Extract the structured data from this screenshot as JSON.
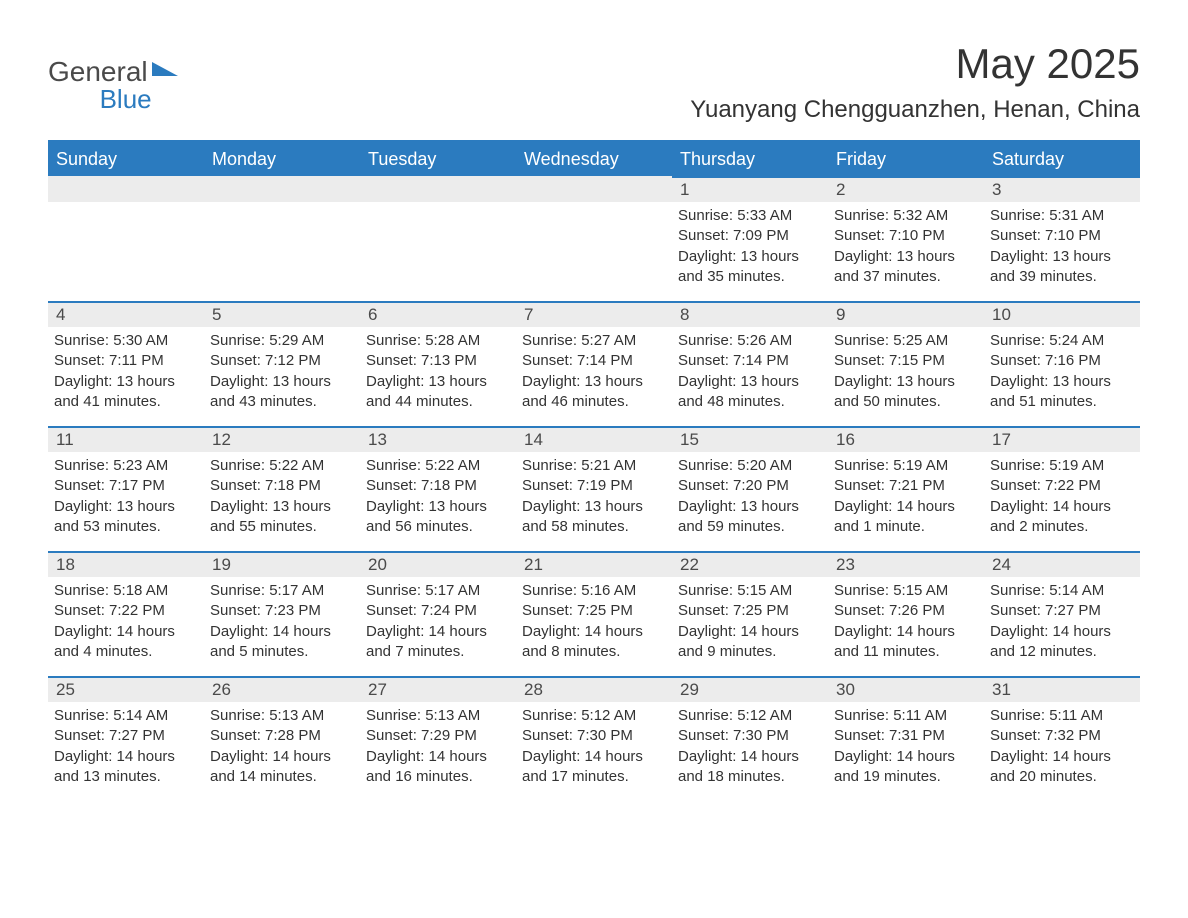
{
  "logo": {
    "word1": "General",
    "word2": "Blue"
  },
  "title": "May 2025",
  "location": "Yuanyang Chengguanzhen, Henan, China",
  "colors": {
    "header_bg": "#2b7bbf",
    "header_text": "#ffffff",
    "daynum_bg": "#ececec",
    "border": "#2b7bbf",
    "text": "#333333",
    "background": "#ffffff"
  },
  "day_headers": [
    "Sunday",
    "Monday",
    "Tuesday",
    "Wednesday",
    "Thursday",
    "Friday",
    "Saturday"
  ],
  "weeks": [
    [
      null,
      null,
      null,
      null,
      {
        "n": "1",
        "sunrise": "5:33 AM",
        "sunset": "7:09 PM",
        "daylight": "13 hours and 35 minutes."
      },
      {
        "n": "2",
        "sunrise": "5:32 AM",
        "sunset": "7:10 PM",
        "daylight": "13 hours and 37 minutes."
      },
      {
        "n": "3",
        "sunrise": "5:31 AM",
        "sunset": "7:10 PM",
        "daylight": "13 hours and 39 minutes."
      }
    ],
    [
      {
        "n": "4",
        "sunrise": "5:30 AM",
        "sunset": "7:11 PM",
        "daylight": "13 hours and 41 minutes."
      },
      {
        "n": "5",
        "sunrise": "5:29 AM",
        "sunset": "7:12 PM",
        "daylight": "13 hours and 43 minutes."
      },
      {
        "n": "6",
        "sunrise": "5:28 AM",
        "sunset": "7:13 PM",
        "daylight": "13 hours and 44 minutes."
      },
      {
        "n": "7",
        "sunrise": "5:27 AM",
        "sunset": "7:14 PM",
        "daylight": "13 hours and 46 minutes."
      },
      {
        "n": "8",
        "sunrise": "5:26 AM",
        "sunset": "7:14 PM",
        "daylight": "13 hours and 48 minutes."
      },
      {
        "n": "9",
        "sunrise": "5:25 AM",
        "sunset": "7:15 PM",
        "daylight": "13 hours and 50 minutes."
      },
      {
        "n": "10",
        "sunrise": "5:24 AM",
        "sunset": "7:16 PM",
        "daylight": "13 hours and 51 minutes."
      }
    ],
    [
      {
        "n": "11",
        "sunrise": "5:23 AM",
        "sunset": "7:17 PM",
        "daylight": "13 hours and 53 minutes."
      },
      {
        "n": "12",
        "sunrise": "5:22 AM",
        "sunset": "7:18 PM",
        "daylight": "13 hours and 55 minutes."
      },
      {
        "n": "13",
        "sunrise": "5:22 AM",
        "sunset": "7:18 PM",
        "daylight": "13 hours and 56 minutes."
      },
      {
        "n": "14",
        "sunrise": "5:21 AM",
        "sunset": "7:19 PM",
        "daylight": "13 hours and 58 minutes."
      },
      {
        "n": "15",
        "sunrise": "5:20 AM",
        "sunset": "7:20 PM",
        "daylight": "13 hours and 59 minutes."
      },
      {
        "n": "16",
        "sunrise": "5:19 AM",
        "sunset": "7:21 PM",
        "daylight": "14 hours and 1 minute."
      },
      {
        "n": "17",
        "sunrise": "5:19 AM",
        "sunset": "7:22 PM",
        "daylight": "14 hours and 2 minutes."
      }
    ],
    [
      {
        "n": "18",
        "sunrise": "5:18 AM",
        "sunset": "7:22 PM",
        "daylight": "14 hours and 4 minutes."
      },
      {
        "n": "19",
        "sunrise": "5:17 AM",
        "sunset": "7:23 PM",
        "daylight": "14 hours and 5 minutes."
      },
      {
        "n": "20",
        "sunrise": "5:17 AM",
        "sunset": "7:24 PM",
        "daylight": "14 hours and 7 minutes."
      },
      {
        "n": "21",
        "sunrise": "5:16 AM",
        "sunset": "7:25 PM",
        "daylight": "14 hours and 8 minutes."
      },
      {
        "n": "22",
        "sunrise": "5:15 AM",
        "sunset": "7:25 PM",
        "daylight": "14 hours and 9 minutes."
      },
      {
        "n": "23",
        "sunrise": "5:15 AM",
        "sunset": "7:26 PM",
        "daylight": "14 hours and 11 minutes."
      },
      {
        "n": "24",
        "sunrise": "5:14 AM",
        "sunset": "7:27 PM",
        "daylight": "14 hours and 12 minutes."
      }
    ],
    [
      {
        "n": "25",
        "sunrise": "5:14 AM",
        "sunset": "7:27 PM",
        "daylight": "14 hours and 13 minutes."
      },
      {
        "n": "26",
        "sunrise": "5:13 AM",
        "sunset": "7:28 PM",
        "daylight": "14 hours and 14 minutes."
      },
      {
        "n": "27",
        "sunrise": "5:13 AM",
        "sunset": "7:29 PM",
        "daylight": "14 hours and 16 minutes."
      },
      {
        "n": "28",
        "sunrise": "5:12 AM",
        "sunset": "7:30 PM",
        "daylight": "14 hours and 17 minutes."
      },
      {
        "n": "29",
        "sunrise": "5:12 AM",
        "sunset": "7:30 PM",
        "daylight": "14 hours and 18 minutes."
      },
      {
        "n": "30",
        "sunrise": "5:11 AM",
        "sunset": "7:31 PM",
        "daylight": "14 hours and 19 minutes."
      },
      {
        "n": "31",
        "sunrise": "5:11 AM",
        "sunset": "7:32 PM",
        "daylight": "14 hours and 20 minutes."
      }
    ]
  ],
  "labels": {
    "sunrise_prefix": "Sunrise: ",
    "sunset_prefix": "Sunset: ",
    "daylight_prefix": "Daylight: "
  }
}
